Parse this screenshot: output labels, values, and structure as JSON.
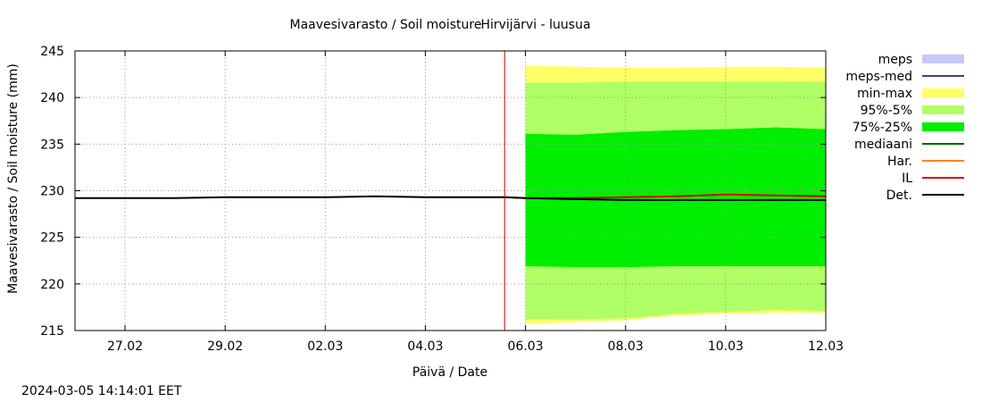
{
  "chart_data": {
    "type": "area",
    "title": "Maavesivarasto / Soil moisture",
    "subtitle": "Hirvijärvi - luusua",
    "xlabel": "Päivä / Date",
    "ylabel": "Maavesivarasto / Soil moisture (mm)",
    "ylim": [
      215,
      245
    ],
    "yticks": [
      215,
      220,
      225,
      230,
      235,
      240,
      245
    ],
    "xlim": [
      "2024-02-26T00:00",
      "2024-03-12T00:00"
    ],
    "xticks": [
      {
        "date": "2024-02-27",
        "label": "27.02"
      },
      {
        "date": "2024-02-29",
        "label": "29.02"
      },
      {
        "date": "2024-03-02",
        "label": "02.03"
      },
      {
        "date": "2024-03-04",
        "label": "04.03"
      },
      {
        "date": "2024-03-06",
        "label": "06.03"
      },
      {
        "date": "2024-03-08",
        "label": "08.03"
      },
      {
        "date": "2024-03-10",
        "label": "10.03"
      },
      {
        "date": "2024-03-12",
        "label": "12.03"
      }
    ],
    "grid": true,
    "legend_position": "right",
    "forecast_start": "2024-03-05T14:00",
    "legend": [
      {
        "label": "meps",
        "kind": "box",
        "color": "#c8c8f8"
      },
      {
        "label": "meps-med",
        "kind": "line",
        "color": "#3a3aa8"
      },
      {
        "label": "min-max",
        "kind": "box",
        "color": "#ffff66"
      },
      {
        "label": "95%-5%",
        "kind": "box",
        "color": "#b0ff66"
      },
      {
        "label": "75%-25%",
        "kind": "box",
        "color": "#00ee00"
      },
      {
        "label": "mediaani",
        "kind": "line",
        "color": "#006400"
      },
      {
        "label": "Har.",
        "kind": "line",
        "color": "#ff8800"
      },
      {
        "label": "IL",
        "kind": "line",
        "color": "#dd0000"
      },
      {
        "label": "Det.",
        "kind": "line",
        "color": "#000000"
      }
    ],
    "bands": [
      {
        "name": "min-max",
        "color": "#ffff66",
        "x": [
          "2024-03-06T00:00",
          "2024-03-07T00:00",
          "2024-03-08T00:00",
          "2024-03-09T00:00",
          "2024-03-10T00:00",
          "2024-03-11T00:00",
          "2024-03-12T00:00"
        ],
        "upper": [
          243.4,
          243.3,
          243.2,
          243.2,
          243.3,
          243.3,
          243.2
        ],
        "lower": [
          215.7,
          215.9,
          216.1,
          216.6,
          216.8,
          216.9,
          216.9
        ]
      },
      {
        "name": "95%-5%",
        "color": "#b0ff66",
        "x": [
          "2024-03-06T00:00",
          "2024-03-07T00:00",
          "2024-03-08T00:00",
          "2024-03-09T00:00",
          "2024-03-10T00:00",
          "2024-03-11T00:00",
          "2024-03-12T00:00"
        ],
        "upper": [
          241.6,
          241.6,
          241.7,
          241.7,
          241.7,
          241.7,
          241.7
        ],
        "lower": [
          216.2,
          216.2,
          216.3,
          216.8,
          217.0,
          217.2,
          217.1
        ]
      },
      {
        "name": "75%-25%",
        "color": "#00ee00",
        "x": [
          "2024-03-06T00:00",
          "2024-03-07T00:00",
          "2024-03-08T00:00",
          "2024-03-09T00:00",
          "2024-03-10T00:00",
          "2024-03-11T00:00",
          "2024-03-12T00:00"
        ],
        "upper": [
          236.1,
          236.0,
          236.3,
          236.5,
          236.6,
          236.8,
          236.6
        ],
        "lower": [
          221.9,
          221.8,
          221.8,
          221.9,
          221.9,
          221.9,
          221.9
        ]
      }
    ],
    "series": [
      {
        "name": "IL",
        "color": "#dd0000",
        "x": [
          "2024-03-05T14:00",
          "2024-03-06T00:00",
          "2024-03-07T00:00",
          "2024-03-08T00:00",
          "2024-03-09T00:00",
          "2024-03-10T00:00",
          "2024-03-11T00:00",
          "2024-03-12T00:00"
        ],
        "y": [
          229.3,
          229.2,
          229.2,
          229.3,
          229.4,
          229.6,
          229.5,
          229.4
        ]
      },
      {
        "name": "Det.",
        "color": "#000000",
        "x": [
          "2024-02-26T00:00",
          "2024-02-28T00:00",
          "2024-02-29T00:00",
          "2024-03-01T00:00",
          "2024-03-02T00:00",
          "2024-03-03T00:00",
          "2024-03-04T00:00",
          "2024-03-05T14:00",
          "2024-03-06T00:00",
          "2024-03-07T00:00",
          "2024-03-08T00:00",
          "2024-03-09T00:00",
          "2024-03-10T00:00",
          "2024-03-11T00:00",
          "2024-03-12T00:00"
        ],
        "y": [
          229.2,
          229.2,
          229.3,
          229.3,
          229.3,
          229.4,
          229.3,
          229.3,
          229.2,
          229.1,
          229.0,
          229.0,
          229.0,
          229.0,
          229.0
        ]
      }
    ]
  },
  "footer": {
    "timestamp": "2024-03-05 14:14:01 EET"
  }
}
